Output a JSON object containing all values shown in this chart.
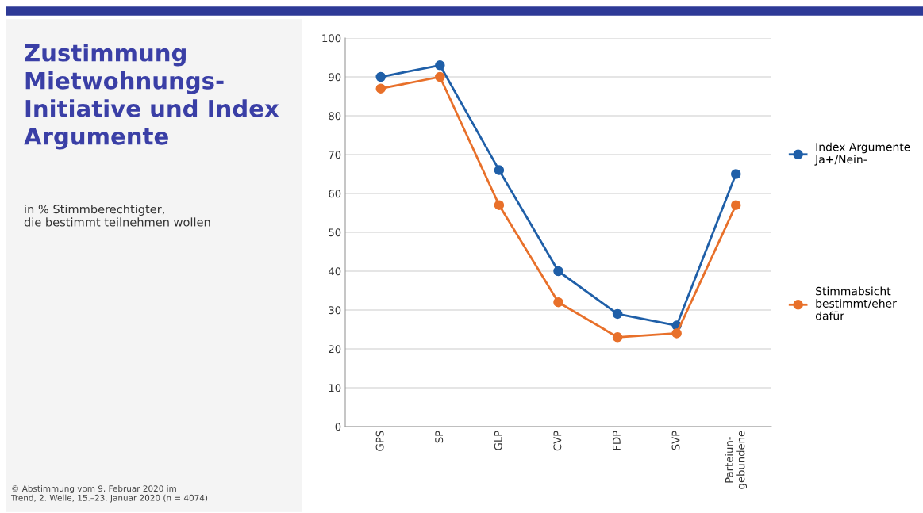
{
  "chart_data": {
    "type": "line",
    "title": "Zustimmung\nMietwohnungs-\nInitiative und Index\nArgumente",
    "subtitle": "in % Stimmberechtigter,\ndie bestimmt teilnehmen wollen",
    "annotations": [
      "© Abstimmung vom 9. Februar 2020 im\nTrend, 2. Welle, 15.–23. Januar 2020 (n = 4074)"
    ],
    "categories": [
      "GPS",
      "SP",
      "GLP",
      "CVP",
      "FDP",
      "SVP",
      "Parteiun-\ngebundene"
    ],
    "series": [
      {
        "name": "Index Argumente\nJa+/Nein-",
        "color": "#1f5fa8",
        "values": [
          90,
          93,
          66,
          40,
          29,
          26,
          65
        ]
      },
      {
        "name": "Stimmabsicht\nbestimmt/eher\ndafür",
        "color": "#e8702a",
        "values": [
          87,
          90,
          57,
          32,
          23,
          24,
          57
        ]
      }
    ],
    "ylim": [
      0,
      100
    ],
    "yticks": [
      0,
      10,
      20,
      30,
      40,
      50,
      60,
      70,
      80,
      90,
      100
    ],
    "grid": "y",
    "legend": "right",
    "marker": "circle",
    "line_style": "solid"
  }
}
